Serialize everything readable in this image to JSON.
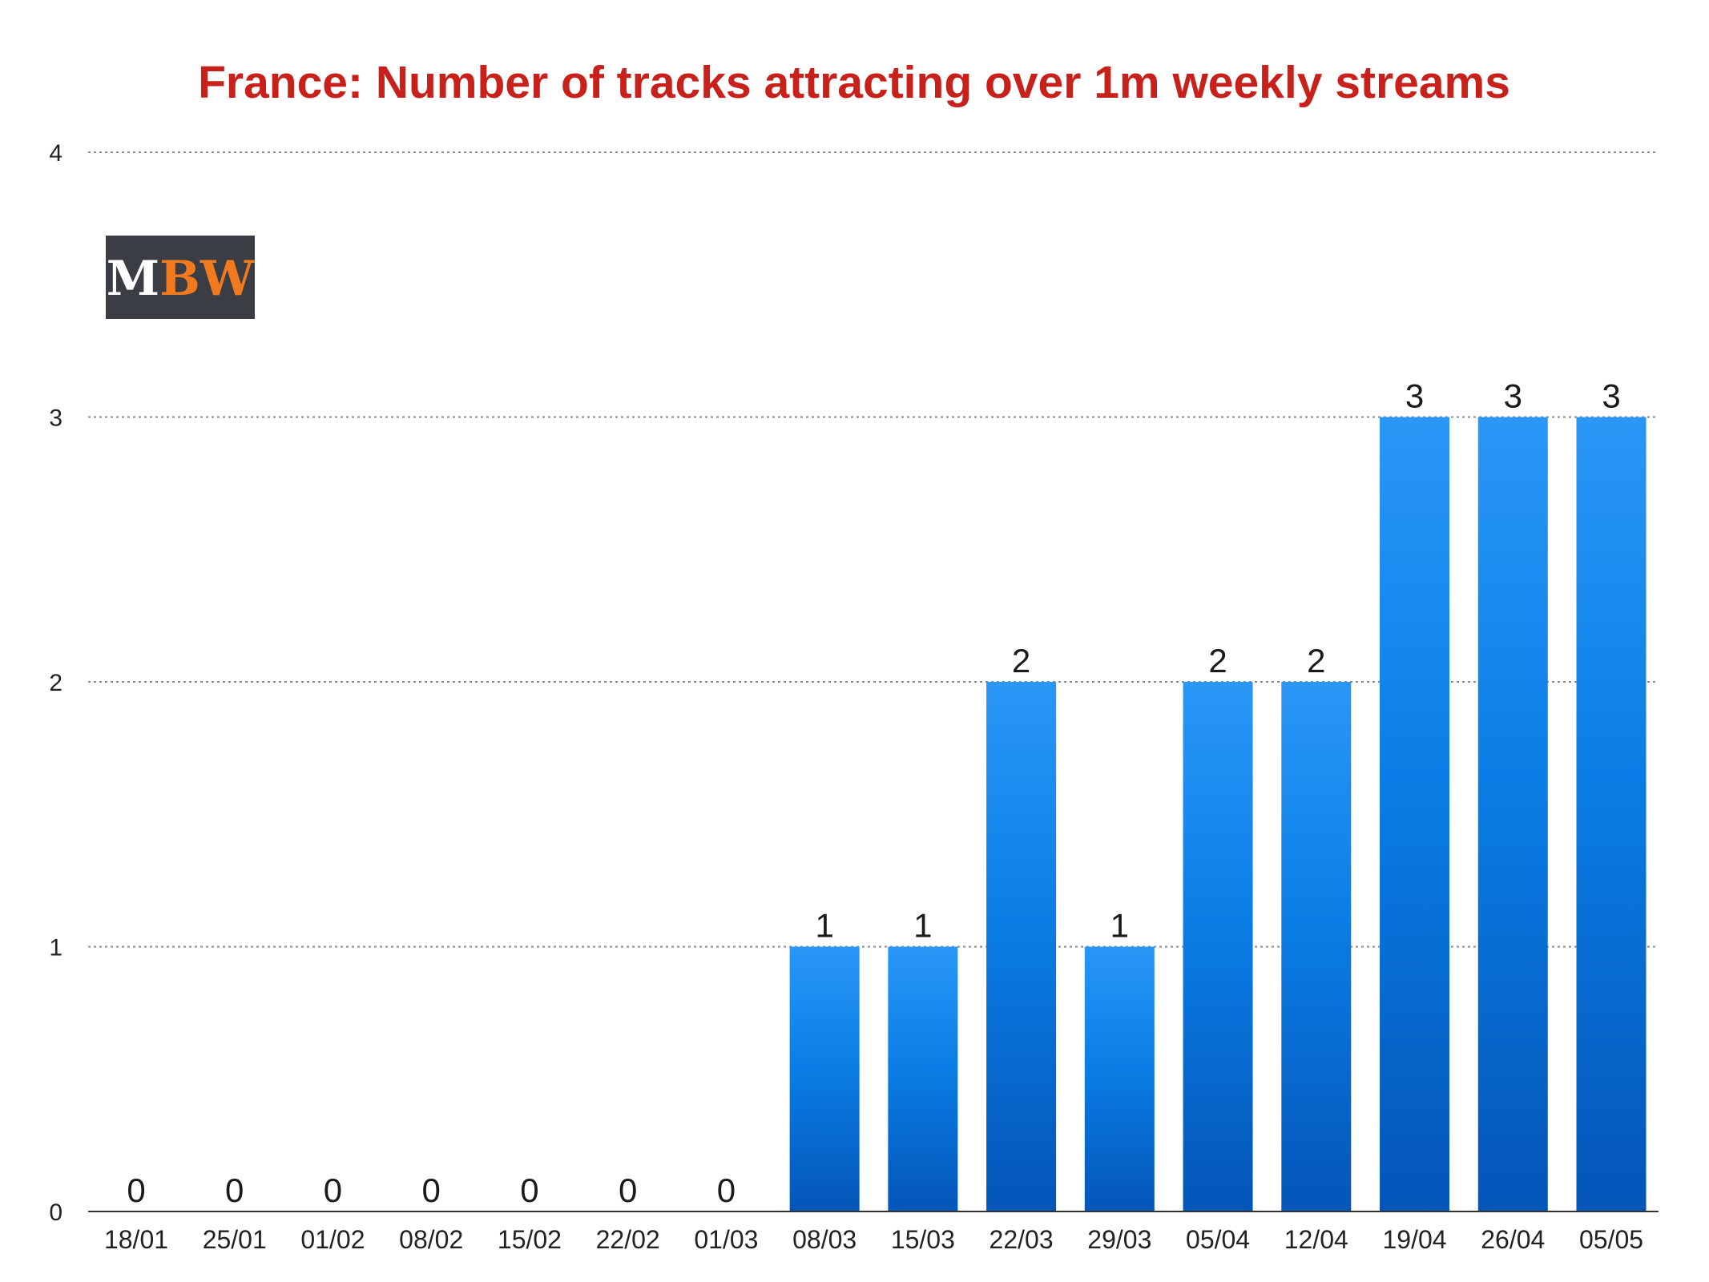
{
  "colors": {
    "title": "#c8201a",
    "bar_top": "#2a97f7",
    "bar_mid": "#0a7ee6",
    "bar_bottom": "#0455b8",
    "grid": "#8c8c8c",
    "axis": "#333333",
    "logo_bg": "#3a3d44",
    "logo_m": "#ffffff",
    "logo_bw": "#f07a1d"
  },
  "logo": {
    "part1": "M",
    "part2": "BW"
  },
  "chart_data": {
    "type": "bar",
    "title": "France: Number of tracks attracting over 1m weekly streams",
    "xlabel": "",
    "ylabel": "",
    "categories": [
      "18/01",
      "25/01",
      "01/02",
      "08/02",
      "15/02",
      "22/02",
      "01/03",
      "08/03",
      "15/03",
      "22/03",
      "29/03",
      "05/04",
      "12/04",
      "19/04",
      "26/04",
      "05/05"
    ],
    "values": [
      0,
      0,
      0,
      0,
      0,
      0,
      0,
      1,
      1,
      2,
      1,
      2,
      2,
      3,
      3,
      3
    ],
    "data_labels": [
      "0",
      "0",
      "0",
      "0",
      "0",
      "0",
      "0",
      "1",
      "1",
      "2",
      "1",
      "2",
      "2",
      "3",
      "3",
      "3"
    ],
    "ylim": [
      0,
      4
    ],
    "yticks": [
      "0",
      "1",
      "2",
      "3",
      "4"
    ],
    "grid": true,
    "legend": false
  }
}
